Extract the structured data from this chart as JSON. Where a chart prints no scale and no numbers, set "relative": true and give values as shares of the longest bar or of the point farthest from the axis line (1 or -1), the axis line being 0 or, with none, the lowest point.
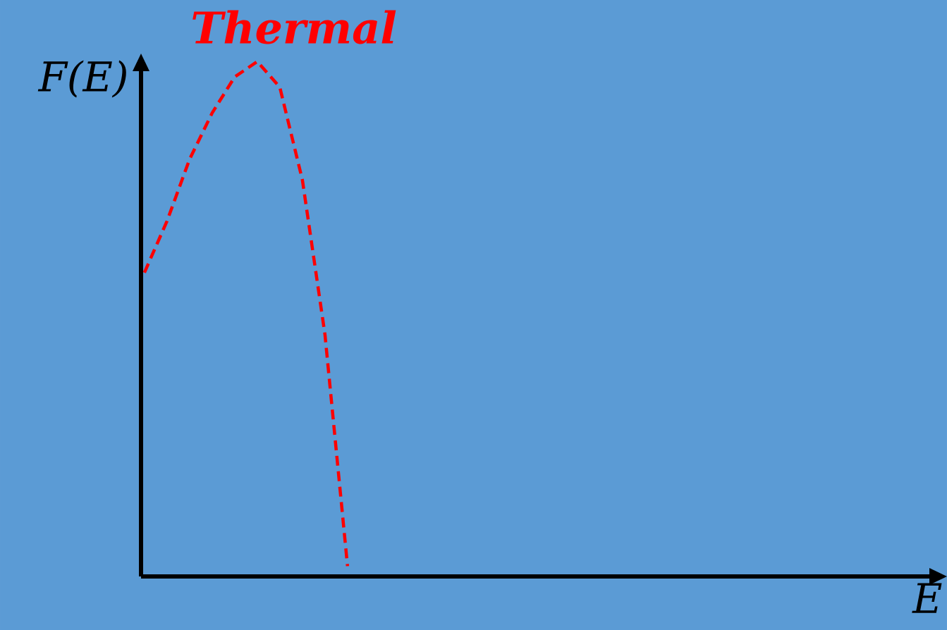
{
  "chart_data": {
    "type": "line",
    "title": "Thermal",
    "xlabel": "E",
    "ylabel": "F(E)",
    "relative": true,
    "categories": [
      null,
      null,
      null,
      null,
      null,
      null,
      null,
      null,
      null,
      null,
      null,
      null,
      null,
      null,
      null,
      null,
      null,
      null,
      null,
      null,
      null,
      null,
      null,
      null,
      null,
      null,
      null,
      null,
      null,
      null,
      null,
      null,
      null,
      null,
      null,
      null
    ],
    "series": [
      {
        "color": "#ff0000",
        "values": [
          0.59,
          0.69,
          0.81,
          0.9,
          0.97,
          1,
          0.95,
          0.77,
          0.47,
          0.02,
          null,
          null,
          null,
          null,
          null,
          null,
          null,
          null,
          null,
          null,
          null,
          null,
          null,
          null,
          null,
          null,
          null,
          null,
          null,
          null,
          null,
          null,
          null,
          null,
          null,
          null
        ]
      }
    ],
    "line_style": "dashed",
    "marker": "none"
  }
}
